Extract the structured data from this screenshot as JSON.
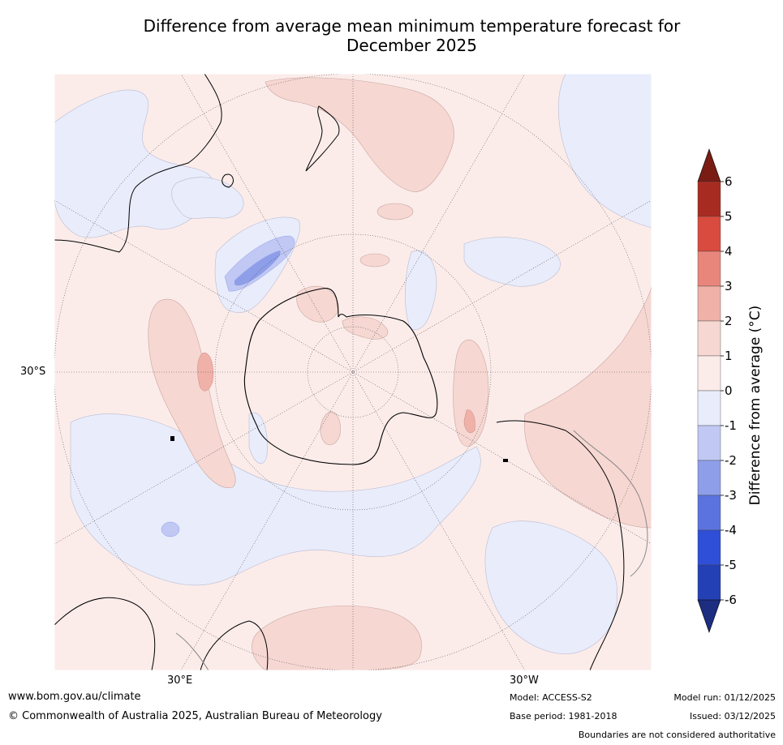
{
  "title_line1": "Difference from average mean minimum temperature forecast for",
  "title_line2": "December 2025",
  "map": {
    "lat_label": "30°S",
    "lon_label_left": "30°E",
    "lon_label_right": "30°W"
  },
  "legend": {
    "label": "Difference from average (°C)",
    "ticks": [
      "6",
      "5",
      "4",
      "3",
      "2",
      "1",
      "0",
      "-1",
      "-2",
      "-3",
      "-4",
      "-5",
      "-6"
    ],
    "colors": [
      "#7a1c14",
      "#a82b22",
      "#d84b3e",
      "#e8867c",
      "#efb1a8",
      "#f6d7d2",
      "#fbecea",
      "#e9ecfb",
      "#c0c8f3",
      "#8e9ee9",
      "#5b73de",
      "#2f4fd8",
      "#2440b5",
      "#1d2d80"
    ]
  },
  "footer": {
    "url": "www.bom.gov.au/climate",
    "copyright": "© Commonwealth of Australia 2025, Australian Bureau of Meteorology",
    "model": "Model: ACCESS-S2",
    "base_period": "Base period: 1981-2018",
    "model_run": "Model run: 01/12/2025",
    "issued": "Issued: 03/12/2025",
    "disclaimer": "Boundaries are not considered authoritative"
  }
}
